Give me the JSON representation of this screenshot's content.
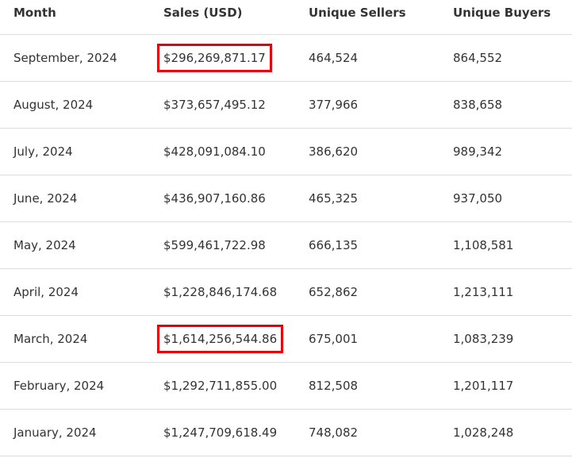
{
  "table": {
    "header": [
      "Month",
      "Sales (USD)",
      "Unique Sellers",
      "Unique Buyers"
    ],
    "rows": [
      [
        "September, 2024",
        "$296,269,871.17",
        "464,524",
        "864,552"
      ],
      [
        "August, 2024",
        "$373,657,495.12",
        "377,966",
        "838,658"
      ],
      [
        "July, 2024",
        "$428,091,084.10",
        "386,620",
        "989,342"
      ],
      [
        "June, 2024",
        "$436,907,160.86",
        "465,325",
        "937,050"
      ],
      [
        "May, 2024",
        "$599,461,722.98",
        "666,135",
        "1,108,581"
      ],
      [
        "April, 2024",
        "$1,228,846,174.68",
        "652,862",
        "1,213,111"
      ],
      [
        "March, 2024",
        "$1,614,256,544.86",
        "675,001",
        "1,083,239"
      ],
      [
        "February, 2024",
        "$1,292,711,855.00",
        "812,508",
        "1,201,117"
      ],
      [
        "January, 2024",
        "$1,247,709,618.49",
        "748,082",
        "1,028,248"
      ]
    ]
  }
}
